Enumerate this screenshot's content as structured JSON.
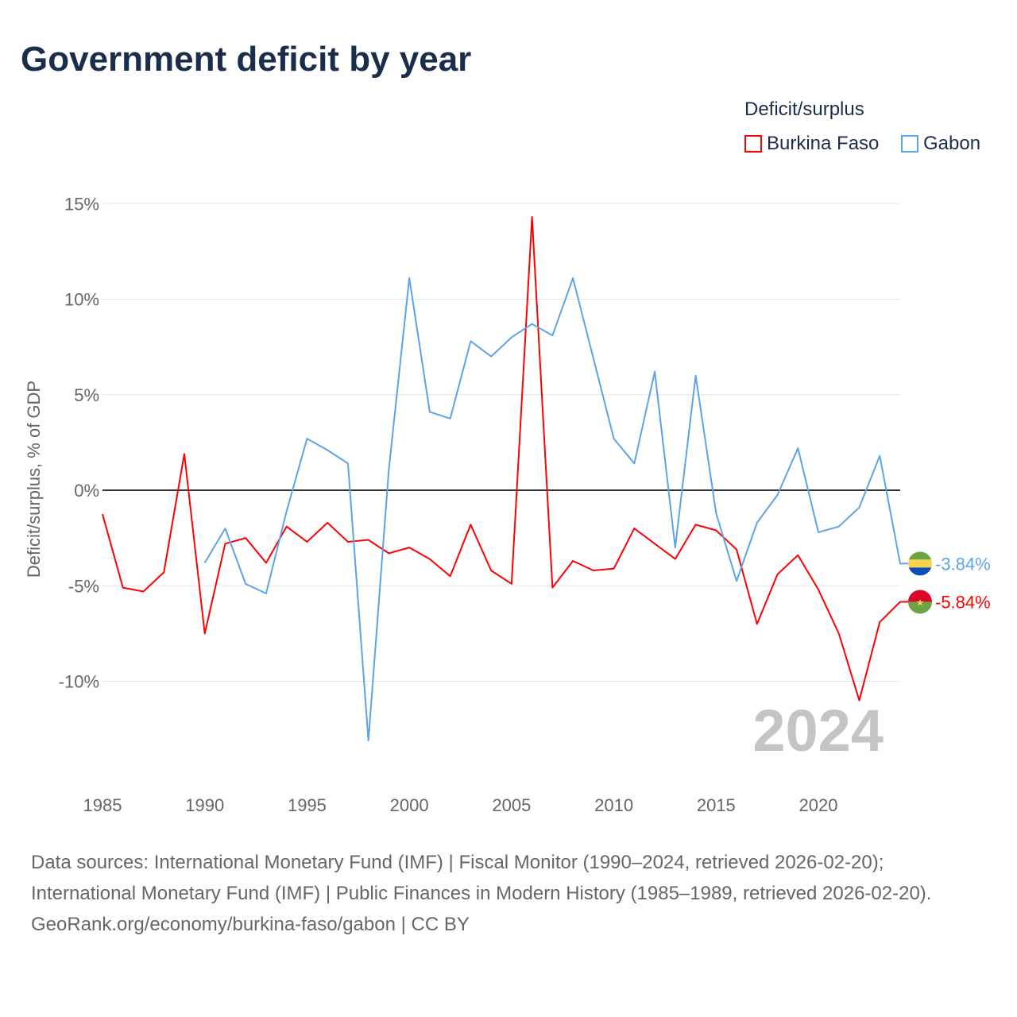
{
  "title": "Government deficit by year",
  "legend": {
    "title": "Deficit/surplus",
    "items": [
      {
        "label": "Burkina Faso",
        "color": "#ff0000"
      },
      {
        "label": "Gabon",
        "color": "#5ba4e8"
      }
    ]
  },
  "watermark_year": "2024",
  "footer": {
    "sources": "Data sources: International Monetary Fund (IMF) | Fiscal Monitor (1990–2024, retrieved 2026-02-20); International Monetary Fund (IMF) | Public Finances in Modern History (1985–1989, retrieved 2026-02-20).",
    "credit": "GeoRank.org/economy/burkina-faso/gabon | CC BY"
  },
  "chart_data": {
    "type": "line",
    "title": "Government deficit by year",
    "xlabel": "",
    "ylabel": "Deficit/surplus, % of GDP",
    "xlim": [
      1985,
      2024
    ],
    "ylim": [
      -14.5,
      15.5
    ],
    "xticks": [
      1985,
      1990,
      1995,
      2000,
      2005,
      2010,
      2015,
      2020
    ],
    "xtick_labels": [
      "1985",
      "1990",
      "1995",
      "2000",
      "2005",
      "2010",
      "2015",
      "2020"
    ],
    "yticks": [
      15,
      10,
      5,
      0,
      -5,
      -10
    ],
    "ytick_labels": [
      "15%",
      "10%",
      "5%",
      "0%",
      "-5%",
      "-10%"
    ],
    "grid": true,
    "legend_position": "top-right",
    "series": [
      {
        "name": "Burkina Faso",
        "color": "#ff0000",
        "end_label": "-5.84%",
        "x": [
          1985,
          1986,
          1987,
          1988,
          1989,
          1990,
          1991,
          1992,
          1993,
          1994,
          1995,
          1996,
          1997,
          1998,
          1999,
          2000,
          2001,
          2002,
          2003,
          2004,
          2005,
          2006,
          2007,
          2008,
          2009,
          2010,
          2011,
          2012,
          2013,
          2014,
          2015,
          2016,
          2017,
          2018,
          2019,
          2020,
          2021,
          2022,
          2023,
          2024
        ],
        "values": [
          -1.25,
          -5.1,
          -5.3,
          -4.3,
          1.9,
          -7.5,
          -2.8,
          -2.5,
          -3.8,
          -1.9,
          -2.7,
          -1.7,
          -2.7,
          -2.6,
          -3.3,
          -3.0,
          -3.6,
          -4.5,
          -1.8,
          -4.2,
          -4.9,
          14.3,
          -5.1,
          -3.7,
          -4.2,
          -4.1,
          -2.0,
          -2.8,
          -3.6,
          -1.8,
          -2.1,
          -3.1,
          -7.0,
          -4.4,
          -3.4,
          -5.2,
          -7.5,
          -11.0,
          -6.9,
          -5.84
        ]
      },
      {
        "name": "Gabon",
        "color": "#5ba4e8",
        "end_label": "-3.84%",
        "x": [
          1990,
          1991,
          1992,
          1993,
          1994,
          1995,
          1996,
          1997,
          1998,
          1999,
          2000,
          2001,
          2002,
          2003,
          2004,
          2005,
          2006,
          2007,
          2008,
          2009,
          2010,
          2011,
          2012,
          2013,
          2014,
          2015,
          2016,
          2017,
          2018,
          2019,
          2020,
          2021,
          2022,
          2023,
          2024
        ],
        "values": [
          -3.8,
          -2.0,
          -4.9,
          -5.4,
          -1.1,
          2.7,
          2.1,
          1.4,
          -13.1,
          1.1,
          11.1,
          4.1,
          3.75,
          7.8,
          7.0,
          8.0,
          8.7,
          8.1,
          11.1,
          6.9,
          2.7,
          1.4,
          6.2,
          -3.0,
          6.0,
          -1.2,
          -4.75,
          -1.7,
          -0.25,
          2.2,
          -2.2,
          -1.9,
          -0.9,
          1.8,
          -3.84
        ]
      }
    ]
  }
}
